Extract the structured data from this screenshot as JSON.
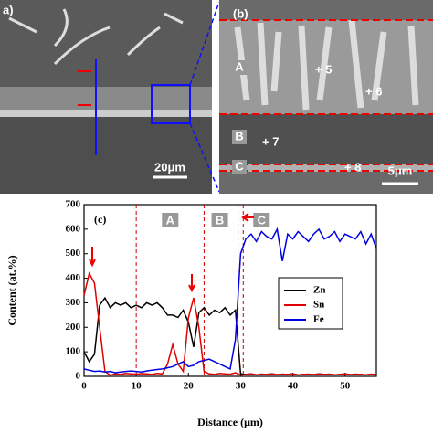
{
  "panels": {
    "a": {
      "label": "a)",
      "scale": "20μm"
    },
    "b": {
      "label": "(b)",
      "scale": "5μm",
      "regions": [
        "A",
        "B",
        "C"
      ],
      "points": [
        "+ 5",
        "+ 6",
        "+ 7",
        "+ 8"
      ]
    }
  },
  "chart_data": {
    "type": "line",
    "panel_label": "(c)",
    "x_label": "Distance (μm)",
    "y_label": "Content (at.%)",
    "x": [
      0,
      1,
      2,
      3,
      4,
      5,
      6,
      7,
      8,
      9,
      10,
      11,
      12,
      13,
      14,
      15,
      16,
      17,
      18,
      19,
      20,
      21,
      22,
      23,
      24,
      25,
      26,
      27,
      28,
      29,
      30,
      31,
      32,
      33,
      34,
      35,
      36,
      37,
      38,
      39,
      40,
      41,
      42,
      43,
      44,
      45,
      46,
      47,
      48,
      49,
      50,
      51,
      52,
      53,
      54,
      55,
      56
    ],
    "series": [
      {
        "name": "Zn",
        "color": "#000000",
        "values": [
          100,
          60,
          90,
          290,
          320,
          280,
          300,
          290,
          300,
          280,
          290,
          280,
          300,
          290,
          300,
          280,
          250,
          250,
          240,
          270,
          220,
          120,
          260,
          280,
          250,
          270,
          260,
          280,
          250,
          270,
          10,
          8,
          10,
          6,
          9,
          8,
          10,
          7,
          9,
          8,
          10,
          6,
          8,
          9,
          7,
          10,
          8,
          9,
          6,
          8,
          10,
          7,
          9,
          8,
          6,
          9,
          8
        ]
      },
      {
        "name": "Sn",
        "color": "#e00000",
        "values": [
          330,
          420,
          380,
          200,
          20,
          5,
          10,
          8,
          12,
          10,
          9,
          11,
          10,
          8,
          12,
          10,
          50,
          130,
          50,
          20,
          240,
          320,
          200,
          20,
          10,
          8,
          12,
          10,
          9,
          15,
          5,
          8,
          10,
          6,
          9,
          8,
          10,
          7,
          9,
          8,
          10,
          6,
          8,
          9,
          7,
          10,
          8,
          9,
          6,
          8,
          10,
          7,
          9,
          8,
          6,
          9,
          8
        ]
      },
      {
        "name": "Fe",
        "color": "#0000e0",
        "values": [
          30,
          25,
          20,
          22,
          18,
          20,
          15,
          18,
          20,
          22,
          20,
          18,
          22,
          25,
          28,
          30,
          35,
          40,
          50,
          60,
          40,
          45,
          60,
          65,
          70,
          60,
          50,
          40,
          30,
          150,
          500,
          560,
          580,
          550,
          590,
          570,
          560,
          600,
          470,
          580,
          560,
          590,
          570,
          550,
          580,
          600,
          560,
          570,
          590,
          550,
          580,
          570,
          560,
          590,
          540,
          580,
          520
        ]
      }
    ],
    "xlim": [
      0,
      56
    ],
    "ylim": [
      0,
      700
    ],
    "xticks": [
      0,
      10,
      20,
      30,
      40,
      50
    ],
    "yticks": [
      0,
      100,
      200,
      300,
      400,
      500,
      600,
      700
    ],
    "vlines": [
      10,
      23,
      29.5,
      30.5
    ],
    "vline_color": "#d00000",
    "regions": [
      {
        "label": "A",
        "x": 16.5
      },
      {
        "label": "B",
        "x": 26
      },
      {
        "label": "C",
        "x": 34
      }
    ]
  }
}
